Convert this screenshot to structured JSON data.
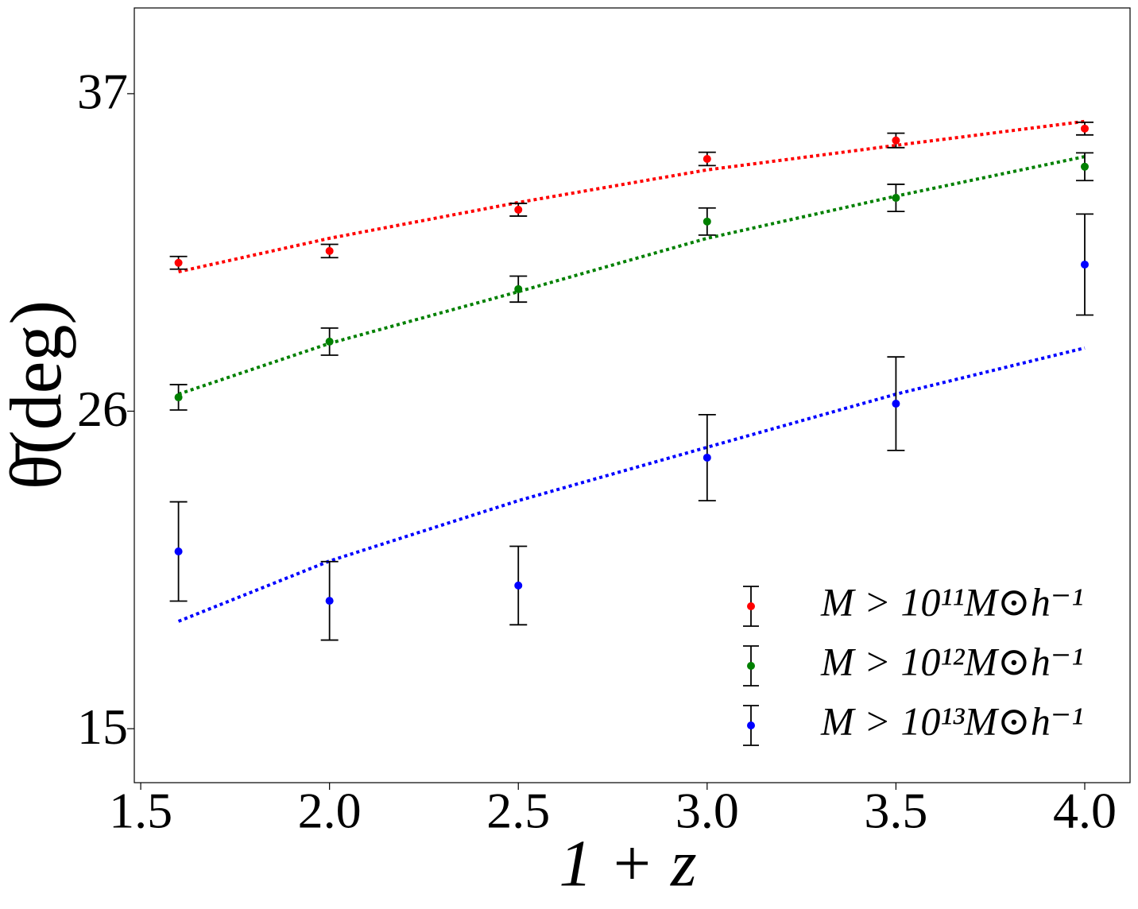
{
  "chart_data": {
    "type": "errorbar",
    "xlabel": "1 + z",
    "ylabel": "θ̄(deg)",
    "x": [
      1.6,
      2.0,
      2.5,
      3.0,
      3.5,
      4.0
    ],
    "series": [
      {
        "name": "M > 10¹¹M⊙h⁻¹",
        "color": "#ff0000",
        "values": [
          31.14,
          31.55,
          32.98,
          34.74,
          35.38,
          35.79
        ],
        "errors": [
          0.22,
          0.23,
          0.22,
          0.23,
          0.25,
          0.22
        ],
        "fit": [
          30.83,
          31.99,
          33.23,
          34.36,
          35.21,
          36.04
        ]
      },
      {
        "name": "M > 10¹²M⊙h⁻¹",
        "color": "#008000",
        "values": [
          26.48,
          28.41,
          30.23,
          32.57,
          33.39,
          34.47
        ],
        "errors": [
          0.44,
          0.47,
          0.45,
          0.47,
          0.47,
          0.48
        ],
        "fit": [
          26.59,
          28.35,
          30.14,
          31.99,
          33.45,
          34.82
        ]
      },
      {
        "name": "M > 10¹³M⊙h⁻¹",
        "color": "#0000ff",
        "values": [
          21.14,
          19.43,
          19.96,
          24.39,
          26.26,
          31.08
        ],
        "errors": [
          1.72,
          1.36,
          1.36,
          1.49,
          1.62,
          1.75
        ],
        "fit": [
          18.72,
          20.81,
          22.9,
          24.75,
          26.59,
          28.19
        ]
      }
    ],
    "xlim": [
      1.483,
      4.12
    ],
    "ylim": [
      13.13,
      39.97
    ],
    "xticks": [
      {
        "value": 1.5,
        "label": "1.5"
      },
      {
        "value": 2.0,
        "label": "2.0"
      },
      {
        "value": 2.5,
        "label": "2.5"
      },
      {
        "value": 3.0,
        "label": "3.0"
      },
      {
        "value": 3.5,
        "label": "3.5"
      },
      {
        "value": 4.0,
        "label": "4.0"
      }
    ],
    "yticks": [
      15,
      26,
      37
    ],
    "grid": false,
    "legend": "lower right"
  }
}
